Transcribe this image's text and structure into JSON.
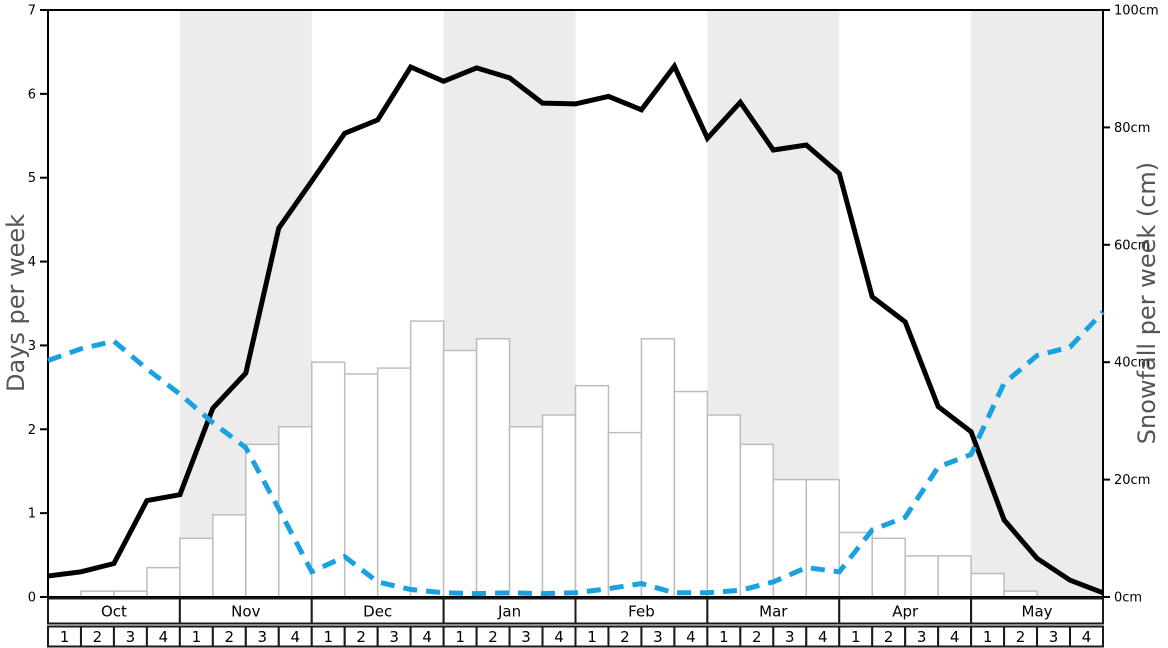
{
  "chart_data": {
    "type": "line+bar",
    "months": [
      "Oct",
      "Nov",
      "Dec",
      "Jan",
      "Feb",
      "Mar",
      "Apr",
      "May"
    ],
    "week_labels": [
      "1",
      "2",
      "3",
      "4"
    ],
    "shaded_months": [
      "Nov",
      "Jan",
      "Mar",
      "May"
    ],
    "left_axis": {
      "title": "Days per week",
      "range": [
        0,
        7
      ],
      "tick_labels": [
        "0",
        "1",
        "2",
        "3",
        "4",
        "5",
        "6",
        "7"
      ],
      "tick_values": [
        0,
        1,
        2,
        3,
        4,
        5,
        6,
        7
      ]
    },
    "right_axis": {
      "title": "Snowfall per week (cm)",
      "range_cm": [
        0,
        100
      ],
      "tick_labels": [
        "0cm",
        "20cm",
        "40cm",
        "60cm",
        "80cm",
        "100cm"
      ],
      "tick_values_cm": [
        0,
        20,
        40,
        60,
        80,
        100
      ]
    },
    "series": [
      {
        "name": "black-line",
        "type": "line",
        "style": "solid",
        "axis": "left",
        "color": "#000000",
        "values_days_per_week": [
          0.25,
          0.3,
          0.4,
          1.15,
          1.22,
          2.25,
          2.67,
          4.4,
          4.96,
          5.53,
          5.69,
          6.32,
          6.15,
          6.31,
          6.19,
          5.89,
          5.88,
          5.97,
          5.81,
          6.33,
          5.47,
          5.9,
          5.33,
          5.39,
          5.05,
          3.58,
          3.28,
          2.27,
          1.97,
          0.92,
          0.46,
          0.2,
          0.05
        ]
      },
      {
        "name": "blue-dashed-line",
        "type": "line",
        "style": "dashed",
        "axis": "left",
        "color": "#18a2e2",
        "values_days_per_week": [
          2.82,
          2.96,
          3.05,
          2.72,
          2.42,
          2.08,
          1.78,
          1.05,
          0.3,
          0.48,
          0.18,
          0.09,
          0.05,
          0.04,
          0.05,
          0.04,
          0.05,
          0.1,
          0.16,
          0.05,
          0.05,
          0.08,
          0.18,
          0.35,
          0.3,
          0.8,
          0.95,
          1.55,
          1.7,
          2.55,
          2.88,
          2.98,
          3.4
        ]
      },
      {
        "name": "snowfall-bars",
        "type": "bar",
        "axis": "right",
        "fill": "#ffffff",
        "border": "#bdbdbd",
        "values_cm_per_week": [
          0,
          1,
          1,
          5,
          10,
          14,
          26,
          29,
          40,
          38,
          39,
          47,
          42,
          44,
          29,
          31,
          36,
          28,
          44,
          35,
          31,
          26,
          20,
          20,
          11,
          10,
          7,
          7,
          4,
          1,
          0,
          0
        ]
      }
    ],
    "colors": {
      "band": "#ececec",
      "frame": "#000000",
      "axis_title": "#555555",
      "tick_text": "#000000",
      "table_border": "#1a1a1a"
    }
  }
}
